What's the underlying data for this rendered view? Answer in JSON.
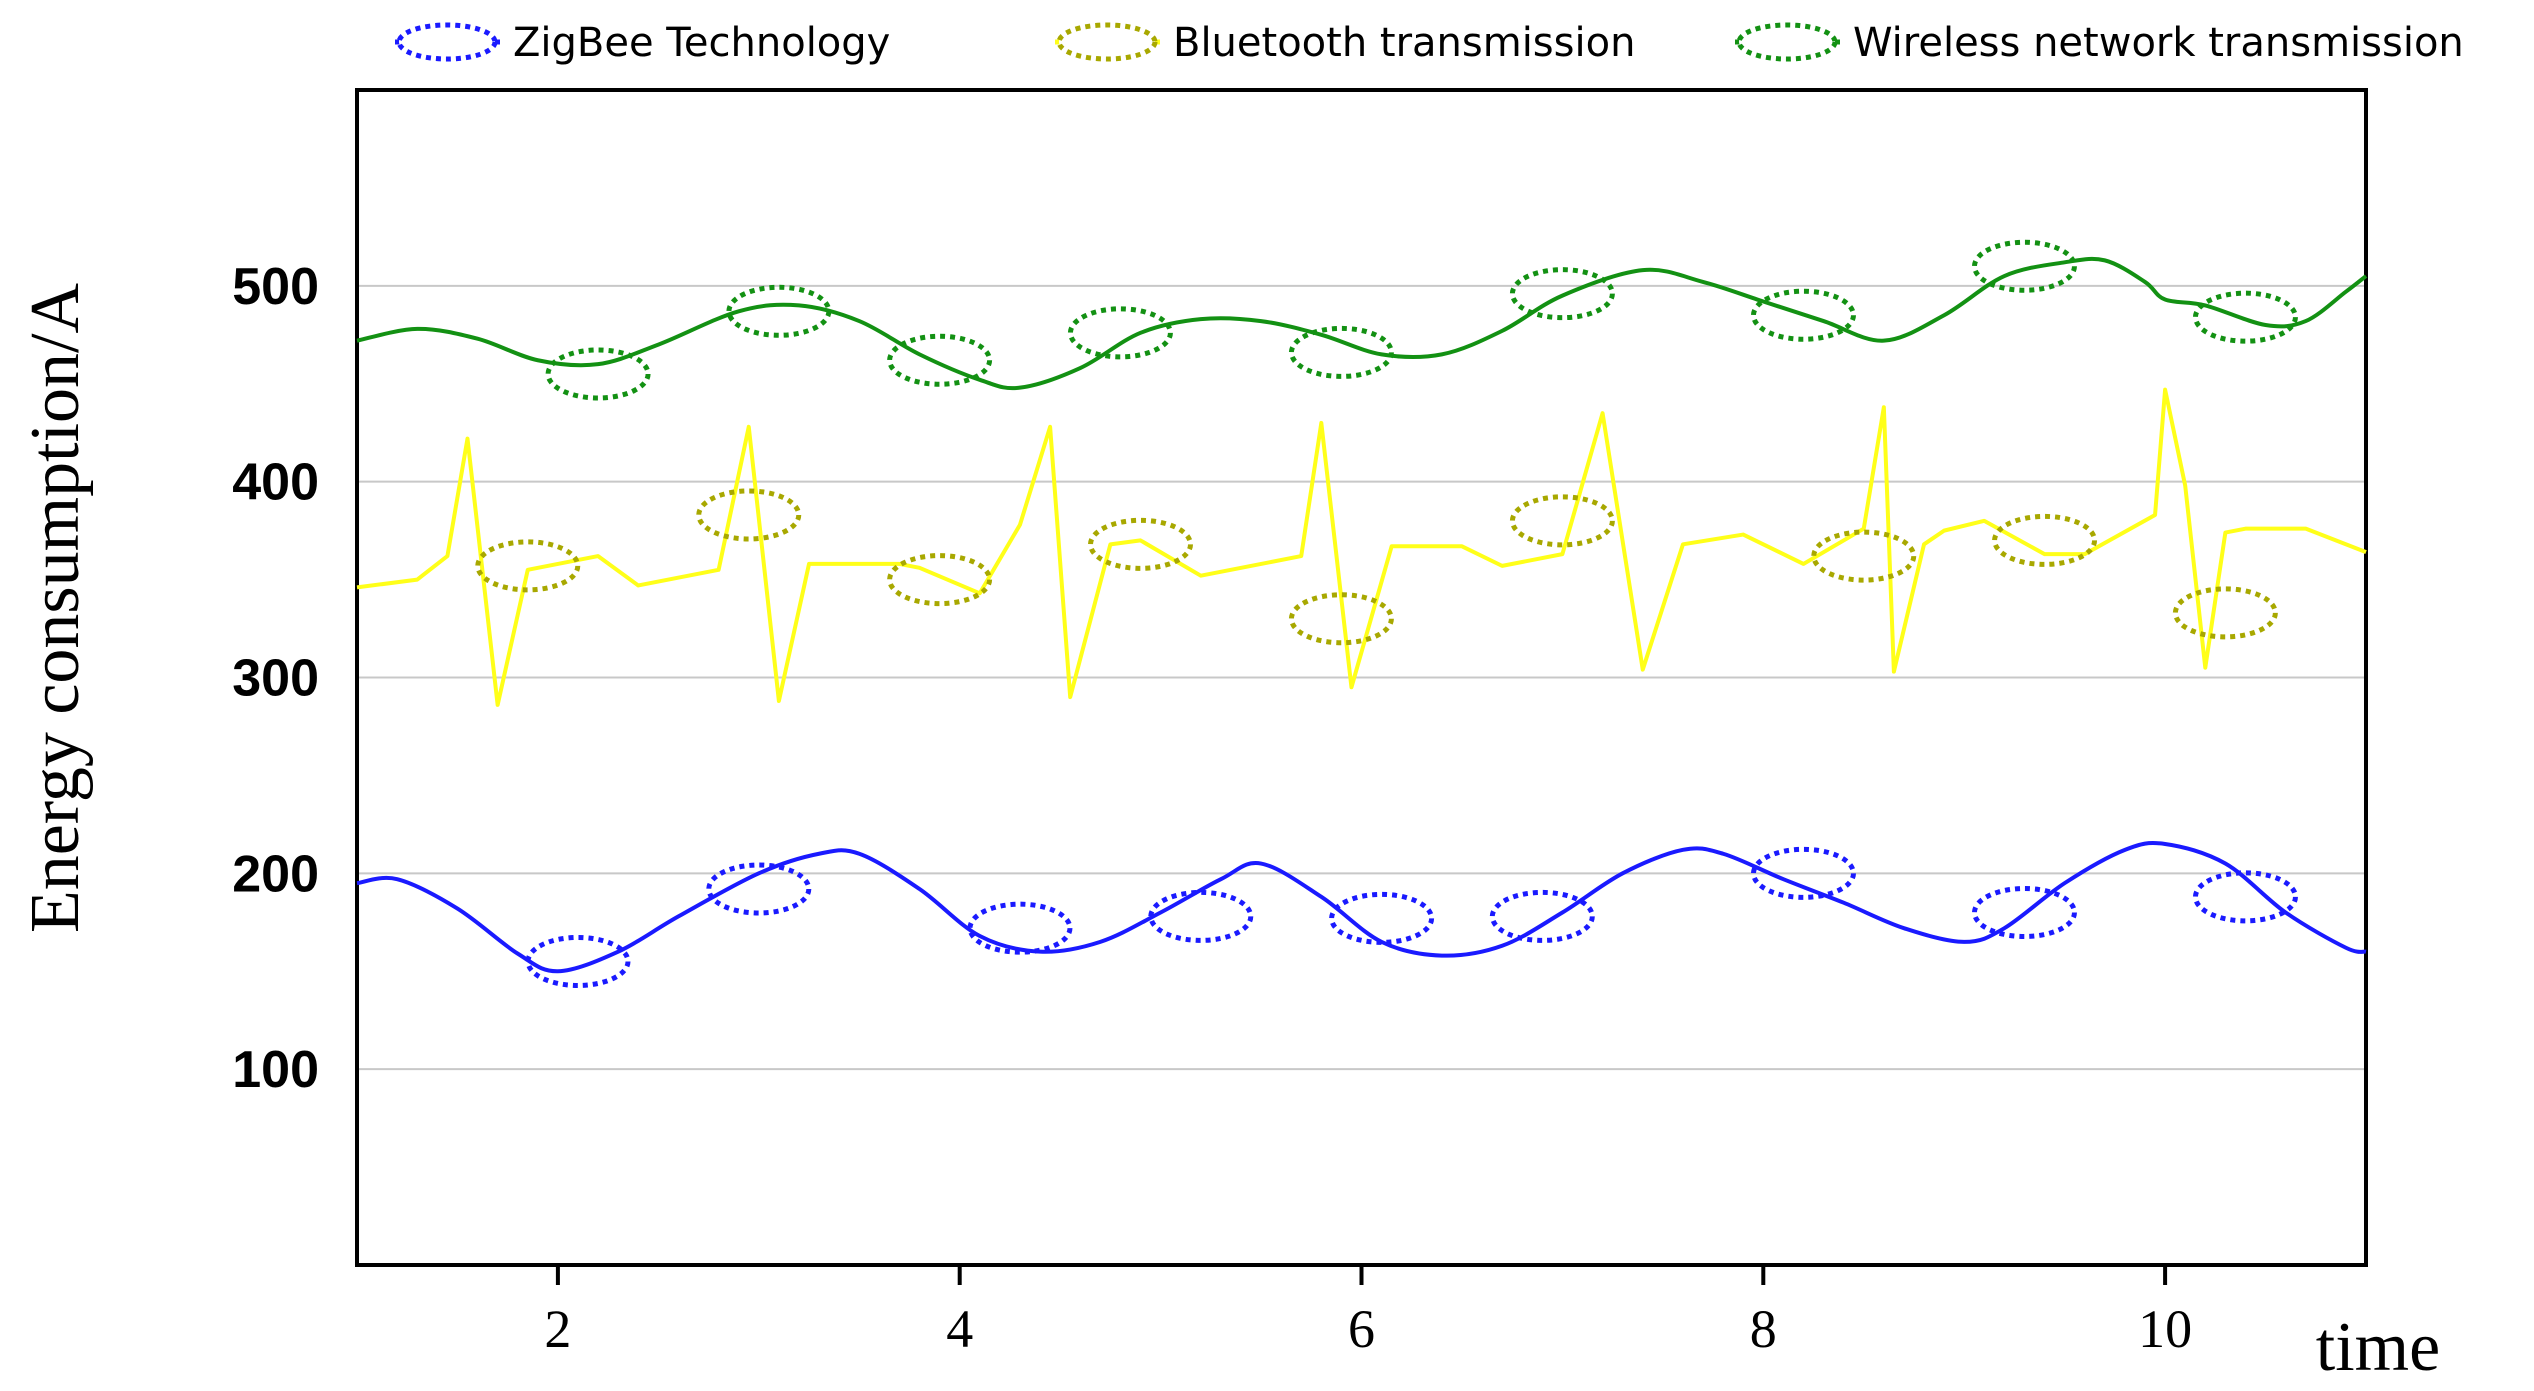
{
  "chart_data": {
    "type": "line",
    "title": "",
    "xlabel": "time",
    "ylabel": "Energy consumption/A",
    "xlim": [
      1,
      11
    ],
    "ylim": [
      0,
      600
    ],
    "x_ticks": [
      2,
      4,
      6,
      8,
      10
    ],
    "y_ticks": [
      100,
      200,
      300,
      400,
      500
    ],
    "grid": "horizontal",
    "legend_position": "top",
    "series": [
      {
        "name": "ZigBee Technology",
        "color": "#1a1aff",
        "x": [
          1.0,
          1.2,
          1.5,
          1.8,
          2.0,
          2.3,
          2.6,
          3.0,
          3.3,
          3.5,
          3.8,
          4.1,
          4.4,
          4.7,
          5.0,
          5.3,
          5.5,
          5.8,
          6.1,
          6.4,
          6.7,
          7.0,
          7.3,
          7.6,
          7.8,
          8.1,
          8.4,
          8.7,
          9.0,
          9.2,
          9.5,
          9.8,
          10.0,
          10.3,
          10.6,
          10.9,
          11.0
        ],
        "y": [
          195,
          197,
          182,
          159,
          150,
          160,
          178,
          200,
          210,
          210,
          192,
          168,
          160,
          165,
          180,
          197,
          205,
          188,
          165,
          158,
          163,
          180,
          200,
          212,
          210,
          197,
          185,
          172,
          165,
          172,
          195,
          212,
          215,
          205,
          180,
          162,
          160
        ],
        "markers": [
          {
            "x": 2.1,
            "y": 155
          },
          {
            "x": 3.0,
            "y": 192
          },
          {
            "x": 4.3,
            "y": 172
          },
          {
            "x": 5.2,
            "y": 178
          },
          {
            "x": 6.1,
            "y": 177
          },
          {
            "x": 6.9,
            "y": 178
          },
          {
            "x": 8.2,
            "y": 200
          },
          {
            "x": 9.3,
            "y": 180
          },
          {
            "x": 10.4,
            "y": 188
          }
        ]
      },
      {
        "name": "Bluetooth transmission",
        "color": "#ffff19",
        "x": [
          1.0,
          1.3,
          1.45,
          1.55,
          1.7,
          1.85,
          2.2,
          2.4,
          2.8,
          2.95,
          3.1,
          3.25,
          3.7,
          3.8,
          4.1,
          4.3,
          4.45,
          4.55,
          4.75,
          4.9,
          5.2,
          5.7,
          5.8,
          5.95,
          6.15,
          6.5,
          6.7,
          7.0,
          7.2,
          7.4,
          7.6,
          7.9,
          8.2,
          8.5,
          8.6,
          8.65,
          8.8,
          8.9,
          9.1,
          9.4,
          9.6,
          9.95,
          10.0,
          10.1,
          10.2,
          10.3,
          10.4,
          10.7,
          11.0
        ],
        "y": [
          346,
          350,
          362,
          422,
          286,
          355,
          362,
          347,
          355,
          428,
          288,
          358,
          358,
          356,
          343,
          378,
          428,
          290,
          368,
          370,
          352,
          362,
          430,
          295,
          367,
          367,
          357,
          363,
          435,
          304,
          368,
          373,
          358,
          376,
          438,
          303,
          368,
          375,
          380,
          363,
          363,
          383,
          447,
          398,
          305,
          374,
          376,
          376,
          364
        ],
        "markers": [
          {
            "x": 1.85,
            "y": 357
          },
          {
            "x": 2.95,
            "y": 383
          },
          {
            "x": 3.9,
            "y": 350
          },
          {
            "x": 4.9,
            "y": 368
          },
          {
            "x": 5.9,
            "y": 330
          },
          {
            "x": 7.0,
            "y": 380
          },
          {
            "x": 8.5,
            "y": 362
          },
          {
            "x": 9.4,
            "y": 370
          },
          {
            "x": 10.3,
            "y": 333
          }
        ]
      },
      {
        "name": "Wireless network transmission",
        "color": "#139113",
        "x": [
          1.0,
          1.3,
          1.6,
          1.9,
          2.2,
          2.5,
          2.9,
          3.2,
          3.5,
          3.8,
          4.1,
          4.3,
          4.6,
          4.9,
          5.2,
          5.5,
          5.8,
          6.1,
          6.4,
          6.7,
          7.0,
          7.4,
          7.7,
          8.0,
          8.3,
          8.6,
          8.9,
          9.2,
          9.5,
          9.7,
          9.9,
          10.0,
          10.2,
          10.5,
          10.7,
          10.9,
          11.0
        ],
        "y": [
          472,
          478,
          473,
          462,
          460,
          470,
          487,
          490,
          482,
          465,
          452,
          448,
          458,
          476,
          483,
          482,
          475,
          465,
          465,
          477,
          495,
          508,
          502,
          492,
          482,
          472,
          485,
          505,
          512,
          513,
          502,
          493,
          490,
          480,
          482,
          497,
          505
        ],
        "markers": [
          {
            "x": 2.2,
            "y": 455
          },
          {
            "x": 3.1,
            "y": 487
          },
          {
            "x": 3.9,
            "y": 462
          },
          {
            "x": 4.8,
            "y": 476
          },
          {
            "x": 5.9,
            "y": 466
          },
          {
            "x": 7.0,
            "y": 496
          },
          {
            "x": 8.2,
            "y": 485
          },
          {
            "x": 9.3,
            "y": 510
          },
          {
            "x": 10.4,
            "y": 484
          }
        ]
      }
    ]
  }
}
